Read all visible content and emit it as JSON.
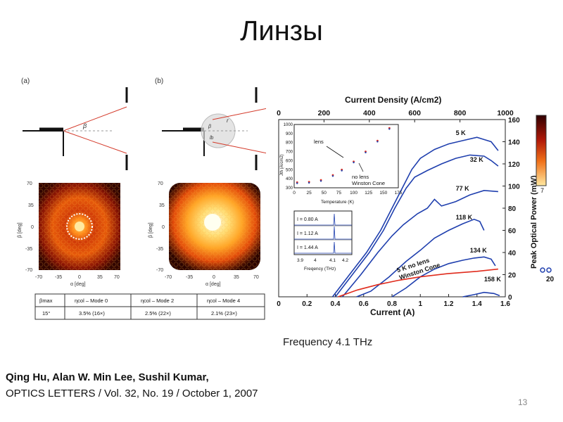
{
  "slide": {
    "title": "Линзы",
    "frequency_caption": "Frequency 4.1 THz",
    "citation_authors": "Qing Hu, Alan W. Min Lee,  Sushil Kumar,",
    "citation_journal": "OPTICS LETTERS / Vol. 32, No. 19 / October 1, 2007",
    "page_number": "13"
  },
  "left_figure": {
    "panel_a_label": "(a)",
    "panel_b_label": "(b)",
    "beta_label": "β",
    "r_label": "r",
    "lb_label": "lb",
    "beam_plot_y_ticks": [
      "70",
      "35",
      "0",
      "-35",
      "-70"
    ],
    "beam_plot_x_ticks": [
      "-70",
      "-35",
      "0",
      "35",
      "70"
    ],
    "beam_plot_y_label": "β [deg]",
    "beam_plot_x_label": "α [deg]",
    "table": {
      "headers": [
        "βmax",
        "ηcol – Mode 0",
        "ηcol – Mode 2",
        "ηcol – Mode 4"
      ],
      "row": [
        "15°",
        "3.5% (16×)",
        "2.5% (22×)",
        "2.1% (23×)"
      ]
    }
  },
  "chart_data": {
    "type": "line",
    "title": "",
    "top_axis_label": "Current Density (A/cm2)",
    "top_axis_ticks": [
      0,
      200,
      400,
      600,
      800,
      1000
    ],
    "xlabel": "Current (A)",
    "x_ticks": [
      "0",
      "0.2",
      "0.4",
      "0.6",
      "0.8",
      "1",
      "1.2",
      "1.4",
      "1.6"
    ],
    "xlim": [
      0,
      1.6
    ],
    "ylabel": "Peak Optical Power (mW)",
    "y_ticks": [
      0,
      20,
      40,
      60,
      80,
      100,
      120,
      140,
      160
    ],
    "ylim": [
      0,
      160
    ],
    "colorbar_labels": [
      "7",
      "20"
    ],
    "series": [
      {
        "name": "5 K",
        "label": "5 K",
        "color": "#1f3fae",
        "points": [
          [
            0.38,
            0
          ],
          [
            0.5,
            20
          ],
          [
            0.62,
            40
          ],
          [
            0.72,
            60
          ],
          [
            0.8,
            80
          ],
          [
            0.88,
            100
          ],
          [
            0.94,
            115
          ],
          [
            1.0,
            125
          ],
          [
            1.1,
            133
          ],
          [
            1.2,
            138
          ],
          [
            1.3,
            141
          ],
          [
            1.4,
            144
          ],
          [
            1.45,
            142
          ],
          [
            1.5,
            140
          ],
          [
            1.55,
            132
          ]
        ]
      },
      {
        "name": "32 K",
        "label": "32 K",
        "color": "#1f3fae",
        "points": [
          [
            0.4,
            0
          ],
          [
            0.52,
            20
          ],
          [
            0.64,
            40
          ],
          [
            0.74,
            60
          ],
          [
            0.82,
            80
          ],
          [
            0.9,
            98
          ],
          [
            0.96,
            108
          ],
          [
            1.05,
            114
          ],
          [
            1.15,
            120
          ],
          [
            1.25,
            125
          ],
          [
            1.35,
            128
          ],
          [
            1.45,
            127
          ],
          [
            1.5,
            123
          ],
          [
            1.55,
            118
          ]
        ]
      },
      {
        "name": "77 K",
        "label": "77 K",
        "color": "#1f3fae",
        "points": [
          [
            0.45,
            0
          ],
          [
            0.58,
            20
          ],
          [
            0.7,
            40
          ],
          [
            0.8,
            55
          ],
          [
            0.88,
            65
          ],
          [
            0.98,
            75
          ],
          [
            1.05,
            80
          ],
          [
            1.1,
            88
          ],
          [
            1.15,
            82
          ],
          [
            1.25,
            86
          ],
          [
            1.35,
            92
          ],
          [
            1.45,
            96
          ],
          [
            1.55,
            95
          ]
        ]
      },
      {
        "name": "118 K",
        "label": "118 K",
        "color": "#1f3fae",
        "points": [
          [
            0.55,
            0
          ],
          [
            0.65,
            5
          ],
          [
            0.78,
            18
          ],
          [
            0.9,
            32
          ],
          [
            1.0,
            42
          ],
          [
            1.1,
            53
          ],
          [
            1.2,
            60
          ],
          [
            1.3,
            66
          ],
          [
            1.38,
            70
          ],
          [
            1.42,
            68
          ],
          [
            1.45,
            60
          ]
        ]
      },
      {
        "name": "134 K",
        "label": "134 K",
        "color": "#1f3fae",
        "points": [
          [
            0.8,
            0
          ],
          [
            0.9,
            8
          ],
          [
            1.0,
            18
          ],
          [
            1.1,
            25
          ],
          [
            1.2,
            30
          ],
          [
            1.3,
            33
          ],
          [
            1.38,
            35
          ],
          [
            1.45,
            36
          ],
          [
            1.5,
            34
          ],
          [
            1.53,
            28
          ]
        ]
      },
      {
        "name": "158 K",
        "label": "158 K",
        "color": "#1f3fae",
        "points": [
          [
            1.3,
            0
          ],
          [
            1.38,
            2
          ],
          [
            1.45,
            4
          ],
          [
            1.52,
            3
          ],
          [
            1.56,
            1
          ]
        ]
      },
      {
        "name": "5 K no lens Winston Cone",
        "label": "5 K no lens Winston Cone",
        "color": "#e02b1c",
        "points": [
          [
            0.42,
            0
          ],
          [
            0.55,
            6
          ],
          [
            0.7,
            11
          ],
          [
            0.85,
            15
          ],
          [
            1.0,
            18
          ],
          [
            1.2,
            21
          ],
          [
            1.4,
            23
          ],
          [
            1.55,
            25
          ]
        ]
      }
    ],
    "inset_threshold": {
      "ylabel": "Jth (A/cm2)",
      "xlabel": "Temperature (K)",
      "y_ticks": [
        1000,
        900,
        800,
        700,
        600,
        500,
        400,
        300
      ],
      "x_ticks": [
        0,
        25,
        50,
        75,
        100,
        125,
        150,
        175
      ],
      "xlim": [
        0,
        175
      ],
      "ylim": [
        300,
        1000
      ],
      "annotations": [
        "lens",
        "no lens",
        "Winston Cone"
      ],
      "lens_points": [
        [
          5,
          360
        ],
        [
          25,
          365
        ],
        [
          45,
          385
        ],
        [
          65,
          440
        ],
        [
          80,
          500
        ],
        [
          100,
          590
        ],
        [
          120,
          700
        ],
        [
          140,
          820
        ],
        [
          160,
          960
        ]
      ],
      "nolens_points": [
        [
          5,
          350
        ],
        [
          25,
          355
        ],
        [
          45,
          375
        ],
        [
          65,
          430
        ],
        [
          80,
          490
        ],
        [
          100,
          580
        ],
        [
          120,
          690
        ],
        [
          140,
          810
        ],
        [
          160,
          950
        ]
      ]
    },
    "inset_spectra": {
      "xlabel": "Freqency (THz)",
      "x_ticks": [
        "3.9",
        "4",
        "4.1",
        "4.2"
      ],
      "currents": [
        "I = 0.80 A",
        "I = 1.12 A",
        "I = 1.44 A"
      ]
    }
  }
}
